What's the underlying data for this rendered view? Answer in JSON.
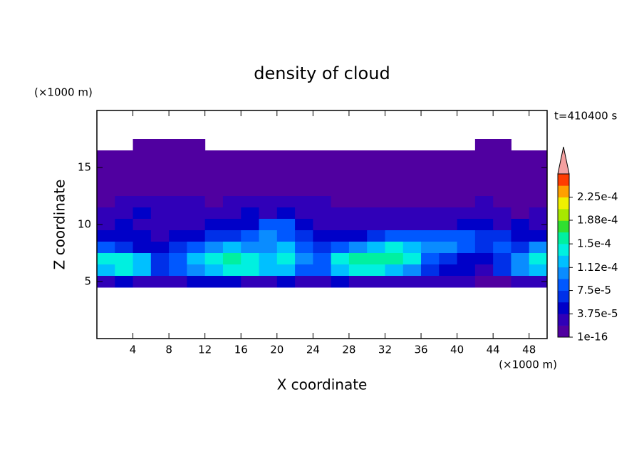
{
  "chart_data": {
    "type": "contour",
    "title": "density of cloud",
    "time_label": "t=410400 s",
    "xlabel": "X coordinate",
    "ylabel": "Z coordinate",
    "x_unit": "(×1000 m)",
    "y_unit": "(×1000 m)",
    "xlim": [
      0,
      50
    ],
    "ylim": [
      0,
      20
    ],
    "xticks": [
      4,
      8,
      12,
      16,
      20,
      24,
      28,
      32,
      36,
      40,
      44,
      48
    ],
    "yticks": [
      5,
      10,
      15
    ],
    "x": [
      1,
      3,
      5,
      7,
      9,
      11,
      13,
      15,
      17,
      19,
      21,
      23,
      25,
      27,
      29,
      31,
      33,
      35,
      37,
      39,
      41,
      43,
      45,
      47,
      49
    ],
    "z": [
      17,
      16,
      15,
      14,
      13,
      12,
      11,
      10,
      9,
      8,
      7,
      6,
      5
    ],
    "values": [
      [
        null,
        null,
        1e-05,
        1e-05,
        1e-05,
        1e-05,
        null,
        null,
        null,
        null,
        null,
        null,
        null,
        null,
        null,
        null,
        null,
        null,
        null,
        null,
        null,
        1e-05,
        1e-05,
        null,
        null
      ],
      [
        1e-05,
        1e-05,
        1e-05,
        1e-05,
        1e-05,
        1e-05,
        1e-05,
        1e-05,
        1e-05,
        1e-05,
        1e-05,
        1e-05,
        1e-05,
        1e-05,
        1e-05,
        1e-05,
        1e-05,
        1e-05,
        1e-05,
        1e-05,
        1e-05,
        1e-05,
        1e-05,
        1e-05,
        1e-05
      ],
      [
        1e-05,
        1e-05,
        1e-05,
        1e-05,
        1e-05,
        1e-05,
        1e-05,
        1e-05,
        1e-05,
        1e-05,
        1e-05,
        1e-05,
        1e-05,
        1e-05,
        1e-05,
        1e-05,
        1e-05,
        1e-05,
        1e-05,
        1e-05,
        1e-05,
        1e-05,
        1e-05,
        1e-05,
        1e-05
      ],
      [
        1e-05,
        1e-05,
        1e-05,
        1e-05,
        1e-05,
        1e-05,
        1e-05,
        1e-05,
        1e-05,
        1e-05,
        1e-05,
        1e-05,
        1e-05,
        1e-05,
        1e-05,
        1e-05,
        1e-05,
        1e-05,
        1e-05,
        1e-05,
        1e-05,
        1e-05,
        1e-05,
        1e-05,
        1e-05
      ],
      [
        1e-05,
        1e-05,
        1e-05,
        1e-05,
        1e-05,
        1e-05,
        1e-05,
        1e-05,
        1e-05,
        1e-05,
        1e-05,
        1e-05,
        1e-05,
        1e-05,
        1e-05,
        1e-05,
        1e-05,
        1e-05,
        1e-05,
        1e-05,
        1e-05,
        1e-05,
        1e-05,
        1e-05,
        1e-05
      ],
      [
        1e-05,
        3e-05,
        3e-05,
        3e-05,
        3e-05,
        3e-05,
        1e-05,
        3e-05,
        3e-05,
        3e-05,
        3e-05,
        3e-05,
        3e-05,
        1e-05,
        1e-05,
        1e-05,
        1e-05,
        1e-05,
        1e-05,
        1e-05,
        1e-05,
        3e-05,
        1e-05,
        1e-05,
        1e-05
      ],
      [
        3e-05,
        3e-05,
        5e-05,
        3e-05,
        3e-05,
        3e-05,
        3e-05,
        3e-05,
        5e-05,
        3e-05,
        5e-05,
        3e-05,
        3e-05,
        3e-05,
        3e-05,
        3e-05,
        3e-05,
        3e-05,
        3e-05,
        3e-05,
        3e-05,
        3e-05,
        3e-05,
        1e-05,
        3e-05
      ],
      [
        3e-05,
        5e-05,
        3e-05,
        3e-05,
        3e-05,
        3e-05,
        5e-05,
        5e-05,
        5e-05,
        8.5e-05,
        8.5e-05,
        5e-05,
        3e-05,
        3e-05,
        3e-05,
        3e-05,
        3e-05,
        3e-05,
        3e-05,
        3e-05,
        5e-05,
        5e-05,
        3e-05,
        5e-05,
        3e-05
      ],
      [
        5e-05,
        5e-05,
        5e-05,
        3e-05,
        5e-05,
        5e-05,
        6.5e-05,
        6.5e-05,
        8.5e-05,
        0.0001,
        8.5e-05,
        6.5e-05,
        5e-05,
        5e-05,
        5e-05,
        6.5e-05,
        8.5e-05,
        8.5e-05,
        8.5e-05,
        8.5e-05,
        8.5e-05,
        6.5e-05,
        6.5e-05,
        5e-05,
        5e-05
      ],
      [
        8.5e-05,
        6.5e-05,
        5e-05,
        5e-05,
        6.5e-05,
        8.5e-05,
        0.0001,
        0.00012,
        0.0001,
        0.0001,
        0.00012,
        8.5e-05,
        6.5e-05,
        8.5e-05,
        0.0001,
        0.00012,
        0.00014,
        0.00012,
        0.0001,
        0.0001,
        8.5e-05,
        6.5e-05,
        8.5e-05,
        6.5e-05,
        0.0001
      ],
      [
        0.00014,
        0.00014,
        0.00012,
        6.5e-05,
        8.5e-05,
        0.00012,
        0.00014,
        0.00016,
        0.00014,
        0.00012,
        0.00014,
        0.0001,
        8.5e-05,
        0.00014,
        0.00016,
        0.00016,
        0.00016,
        0.00014,
        8.5e-05,
        6.5e-05,
        5e-05,
        5e-05,
        6.5e-05,
        0.0001,
        0.00014
      ],
      [
        0.00012,
        0.00014,
        0.00012,
        6.5e-05,
        8.5e-05,
        0.0001,
        0.00012,
        0.00014,
        0.00014,
        0.00012,
        0.00012,
        8.5e-05,
        8.5e-05,
        0.00012,
        0.00014,
        0.00014,
        0.00012,
        0.0001,
        6.5e-05,
        5e-05,
        5e-05,
        3e-05,
        6.5e-05,
        0.0001,
        0.00012
      ],
      [
        3e-05,
        5e-05,
        3e-05,
        3e-05,
        3e-05,
        5e-05,
        5e-05,
        5e-05,
        3e-05,
        3e-05,
        5e-05,
        3e-05,
        3e-05,
        5e-05,
        3e-05,
        3e-05,
        3e-05,
        3e-05,
        3e-05,
        3e-05,
        3e-05,
        1e-05,
        1e-05,
        3e-05,
        3e-05
      ]
    ],
    "clim": [
      1e-16,
      0.0002625
    ],
    "cticks": [
      1e-16,
      {
        "value": 3.75e-05,
        "label": "3.75e-5"
      },
      {
        "value": 7.5e-05,
        "label": "7.5e-5"
      },
      {
        "value": 0.000112,
        "label": "1.12e-4"
      },
      {
        "value": 0.00015,
        "label": "1.5e-4"
      },
      {
        "value": 0.000188,
        "label": "1.88e-4"
      },
      {
        "value": 0.000225,
        "label": "2.25e-4"
      }
    ],
    "colors": [
      "#5000a0",
      "#3000b8",
      "#0000c8",
      "#0030e8",
      "#0058ff",
      "#0a8cff",
      "#00c0ff",
      "#00f0e0",
      "#00f0a0",
      "#30e030",
      "#a8e800",
      "#f0f000",
      "#ffa000",
      "#ff3c00"
    ],
    "over_color": "#f4a0a0"
  }
}
